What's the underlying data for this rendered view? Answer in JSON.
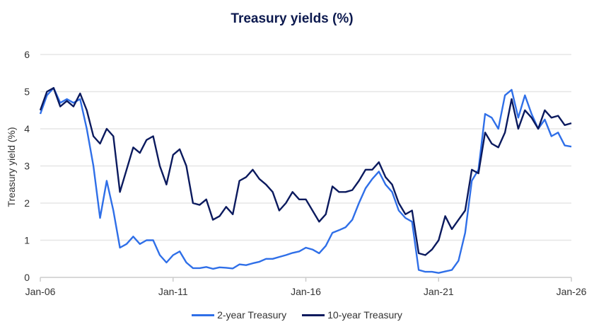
{
  "chart_data": {
    "type": "line",
    "title": "Treasury yields (%)",
    "xlabel": "",
    "ylabel": "Treasury yield (%)",
    "ylim": [
      0,
      6
    ],
    "yticks": [
      "0",
      "1",
      "2",
      "3",
      "4",
      "5",
      "6"
    ],
    "xlim": [
      "2006-01",
      "2026-01"
    ],
    "xticks": [
      {
        "label": "Jan-06",
        "date": "2006-01"
      },
      {
        "label": "Jan-11",
        "date": "2011-01"
      },
      {
        "label": "Jan-16",
        "date": "2016-01"
      },
      {
        "label": "Jan-21",
        "date": "2021-01"
      },
      {
        "label": "Jan-26",
        "date": "2026-01"
      }
    ],
    "grid": "horizontal",
    "legend": "bottom",
    "x": [
      "2006-01",
      "2006-04",
      "2006-07",
      "2006-10",
      "2007-01",
      "2007-04",
      "2007-07",
      "2007-10",
      "2008-01",
      "2008-04",
      "2008-07",
      "2008-10",
      "2009-01",
      "2009-04",
      "2009-07",
      "2009-10",
      "2010-01",
      "2010-04",
      "2010-07",
      "2010-10",
      "2011-01",
      "2011-04",
      "2011-07",
      "2011-10",
      "2012-01",
      "2012-04",
      "2012-07",
      "2012-10",
      "2013-01",
      "2013-04",
      "2013-07",
      "2013-10",
      "2014-01",
      "2014-04",
      "2014-07",
      "2014-10",
      "2015-01",
      "2015-04",
      "2015-07",
      "2015-10",
      "2016-01",
      "2016-04",
      "2016-07",
      "2016-10",
      "2017-01",
      "2017-04",
      "2017-07",
      "2017-10",
      "2018-01",
      "2018-04",
      "2018-07",
      "2018-10",
      "2019-01",
      "2019-04",
      "2019-07",
      "2019-10",
      "2020-01",
      "2020-04",
      "2020-07",
      "2020-10",
      "2021-01",
      "2021-04",
      "2021-07",
      "2021-10",
      "2022-01",
      "2022-04",
      "2022-07",
      "2022-10",
      "2023-01",
      "2023-04",
      "2023-07",
      "2023-10",
      "2024-01",
      "2024-04",
      "2024-07",
      "2024-10",
      "2025-01",
      "2025-04",
      "2025-07",
      "2025-10",
      "2026-01"
    ],
    "series": [
      {
        "name": "2-year Treasury",
        "color": "#2f6fe8",
        "values": [
          4.4,
          4.9,
          5.1,
          4.7,
          4.8,
          4.7,
          4.8,
          4.0,
          3.0,
          1.6,
          2.6,
          1.8,
          0.8,
          0.9,
          1.1,
          0.9,
          1.0,
          1.0,
          0.6,
          0.4,
          0.6,
          0.7,
          0.4,
          0.25,
          0.25,
          0.28,
          0.23,
          0.27,
          0.26,
          0.24,
          0.35,
          0.33,
          0.38,
          0.42,
          0.5,
          0.5,
          0.55,
          0.6,
          0.66,
          0.7,
          0.8,
          0.75,
          0.65,
          0.85,
          1.2,
          1.27,
          1.35,
          1.55,
          2.0,
          2.4,
          2.65,
          2.85,
          2.5,
          2.3,
          1.8,
          1.6,
          1.5,
          0.2,
          0.15,
          0.15,
          0.12,
          0.16,
          0.2,
          0.45,
          1.2,
          2.6,
          2.9,
          4.4,
          4.3,
          4.0,
          4.9,
          5.05,
          4.3,
          4.9,
          4.4,
          4.0,
          4.25,
          3.8,
          3.9,
          3.55,
          3.52
        ]
      },
      {
        "name": "10-year Treasury",
        "color": "#0b1a5e",
        "values": [
          4.5,
          5.0,
          5.1,
          4.6,
          4.75,
          4.6,
          4.95,
          4.5,
          3.8,
          3.6,
          4.0,
          3.8,
          2.3,
          2.9,
          3.5,
          3.35,
          3.7,
          3.8,
          3.0,
          2.5,
          3.3,
          3.45,
          3.0,
          2.0,
          1.95,
          2.1,
          1.55,
          1.65,
          1.9,
          1.7,
          2.6,
          2.7,
          2.9,
          2.65,
          2.5,
          2.3,
          1.8,
          2.0,
          2.3,
          2.1,
          2.1,
          1.8,
          1.5,
          1.7,
          2.45,
          2.3,
          2.3,
          2.35,
          2.6,
          2.9,
          2.9,
          3.1,
          2.7,
          2.5,
          2.0,
          1.7,
          1.8,
          0.65,
          0.6,
          0.75,
          1.0,
          1.65,
          1.3,
          1.55,
          1.8,
          2.9,
          2.8,
          3.9,
          3.6,
          3.5,
          3.9,
          4.8,
          4.0,
          4.5,
          4.3,
          4.0,
          4.5,
          4.3,
          4.35,
          4.1,
          4.15
        ]
      }
    ]
  }
}
